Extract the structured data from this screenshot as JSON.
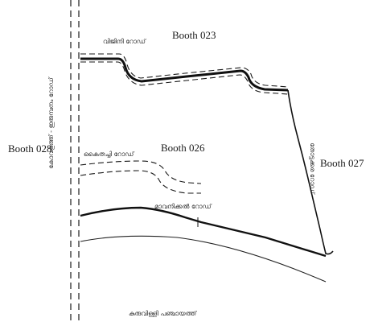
{
  "booths": {
    "top": "Booth 023",
    "left": "Booth 028",
    "middle": "Booth 026",
    "right": "Booth 027"
  },
  "road_labels": {
    "top_road": "വിജിനി റോഡ്",
    "middle_road": "കൈതച്ചി റോഡ്",
    "lower_road": "മാവനിക്കൽ റോഡ്",
    "vertical_left": "കോവളത്ത് - ഇരുമ്പനം റോഡ്",
    "vertical_right": "തോട്ടക്കര റോഡ്",
    "bottom": "കുരുവിള്ളി പഞ്ചായത്ത്"
  },
  "colors": {
    "line": "#1a1a1a",
    "background": "#ffffff"
  }
}
